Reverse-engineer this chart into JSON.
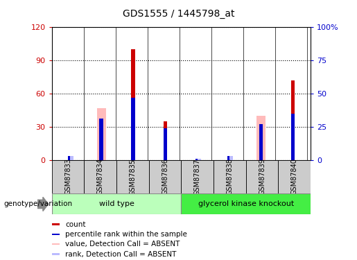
{
  "title": "GDS1555 / 1445798_at",
  "samples": [
    "GSM87833",
    "GSM87834",
    "GSM87835",
    "GSM87836",
    "GSM87837",
    "GSM87838",
    "GSM87839",
    "GSM87840"
  ],
  "count_values": [
    0,
    0,
    100,
    35,
    0,
    0,
    0,
    72
  ],
  "percentile_rank": [
    3,
    31,
    47,
    24,
    1,
    3,
    27,
    35
  ],
  "absent_value": [
    0,
    47,
    0,
    0,
    0,
    0,
    40,
    0
  ],
  "absent_rank": [
    3,
    0,
    0,
    0,
    1,
    3,
    0,
    0
  ],
  "has_count": [
    false,
    false,
    true,
    true,
    false,
    false,
    false,
    true
  ],
  "has_absent_value": [
    false,
    true,
    false,
    false,
    false,
    false,
    true,
    false
  ],
  "left_ylim": [
    0,
    120
  ],
  "right_ylim": [
    0,
    100
  ],
  "left_yticks": [
    0,
    30,
    60,
    90,
    120
  ],
  "right_yticks": [
    0,
    25,
    50,
    75,
    100
  ],
  "right_yticklabels": [
    "0",
    "25",
    "50",
    "75",
    "100%"
  ],
  "left_ycolor": "#cc0000",
  "right_ycolor": "#0000cc",
  "groups": [
    {
      "label": "wild type",
      "start": 0,
      "end": 3,
      "color": "#bbffbb"
    },
    {
      "label": "glycerol kinase knockout",
      "start": 4,
      "end": 7,
      "color": "#44ee44"
    }
  ],
  "group_label": "genotype/variation",
  "legend_items": [
    {
      "label": "count",
      "color": "#cc0000"
    },
    {
      "label": "percentile rank within the sample",
      "color": "#0000cc"
    },
    {
      "label": "value, Detection Call = ABSENT",
      "color": "#ffbbbb"
    },
    {
      "label": "rank, Detection Call = ABSENT",
      "color": "#bbbbff"
    }
  ],
  "plot_bg": "#ffffff",
  "sample_box_color": "#cccccc",
  "spine_color": "#000000",
  "grid_color": "#000000"
}
